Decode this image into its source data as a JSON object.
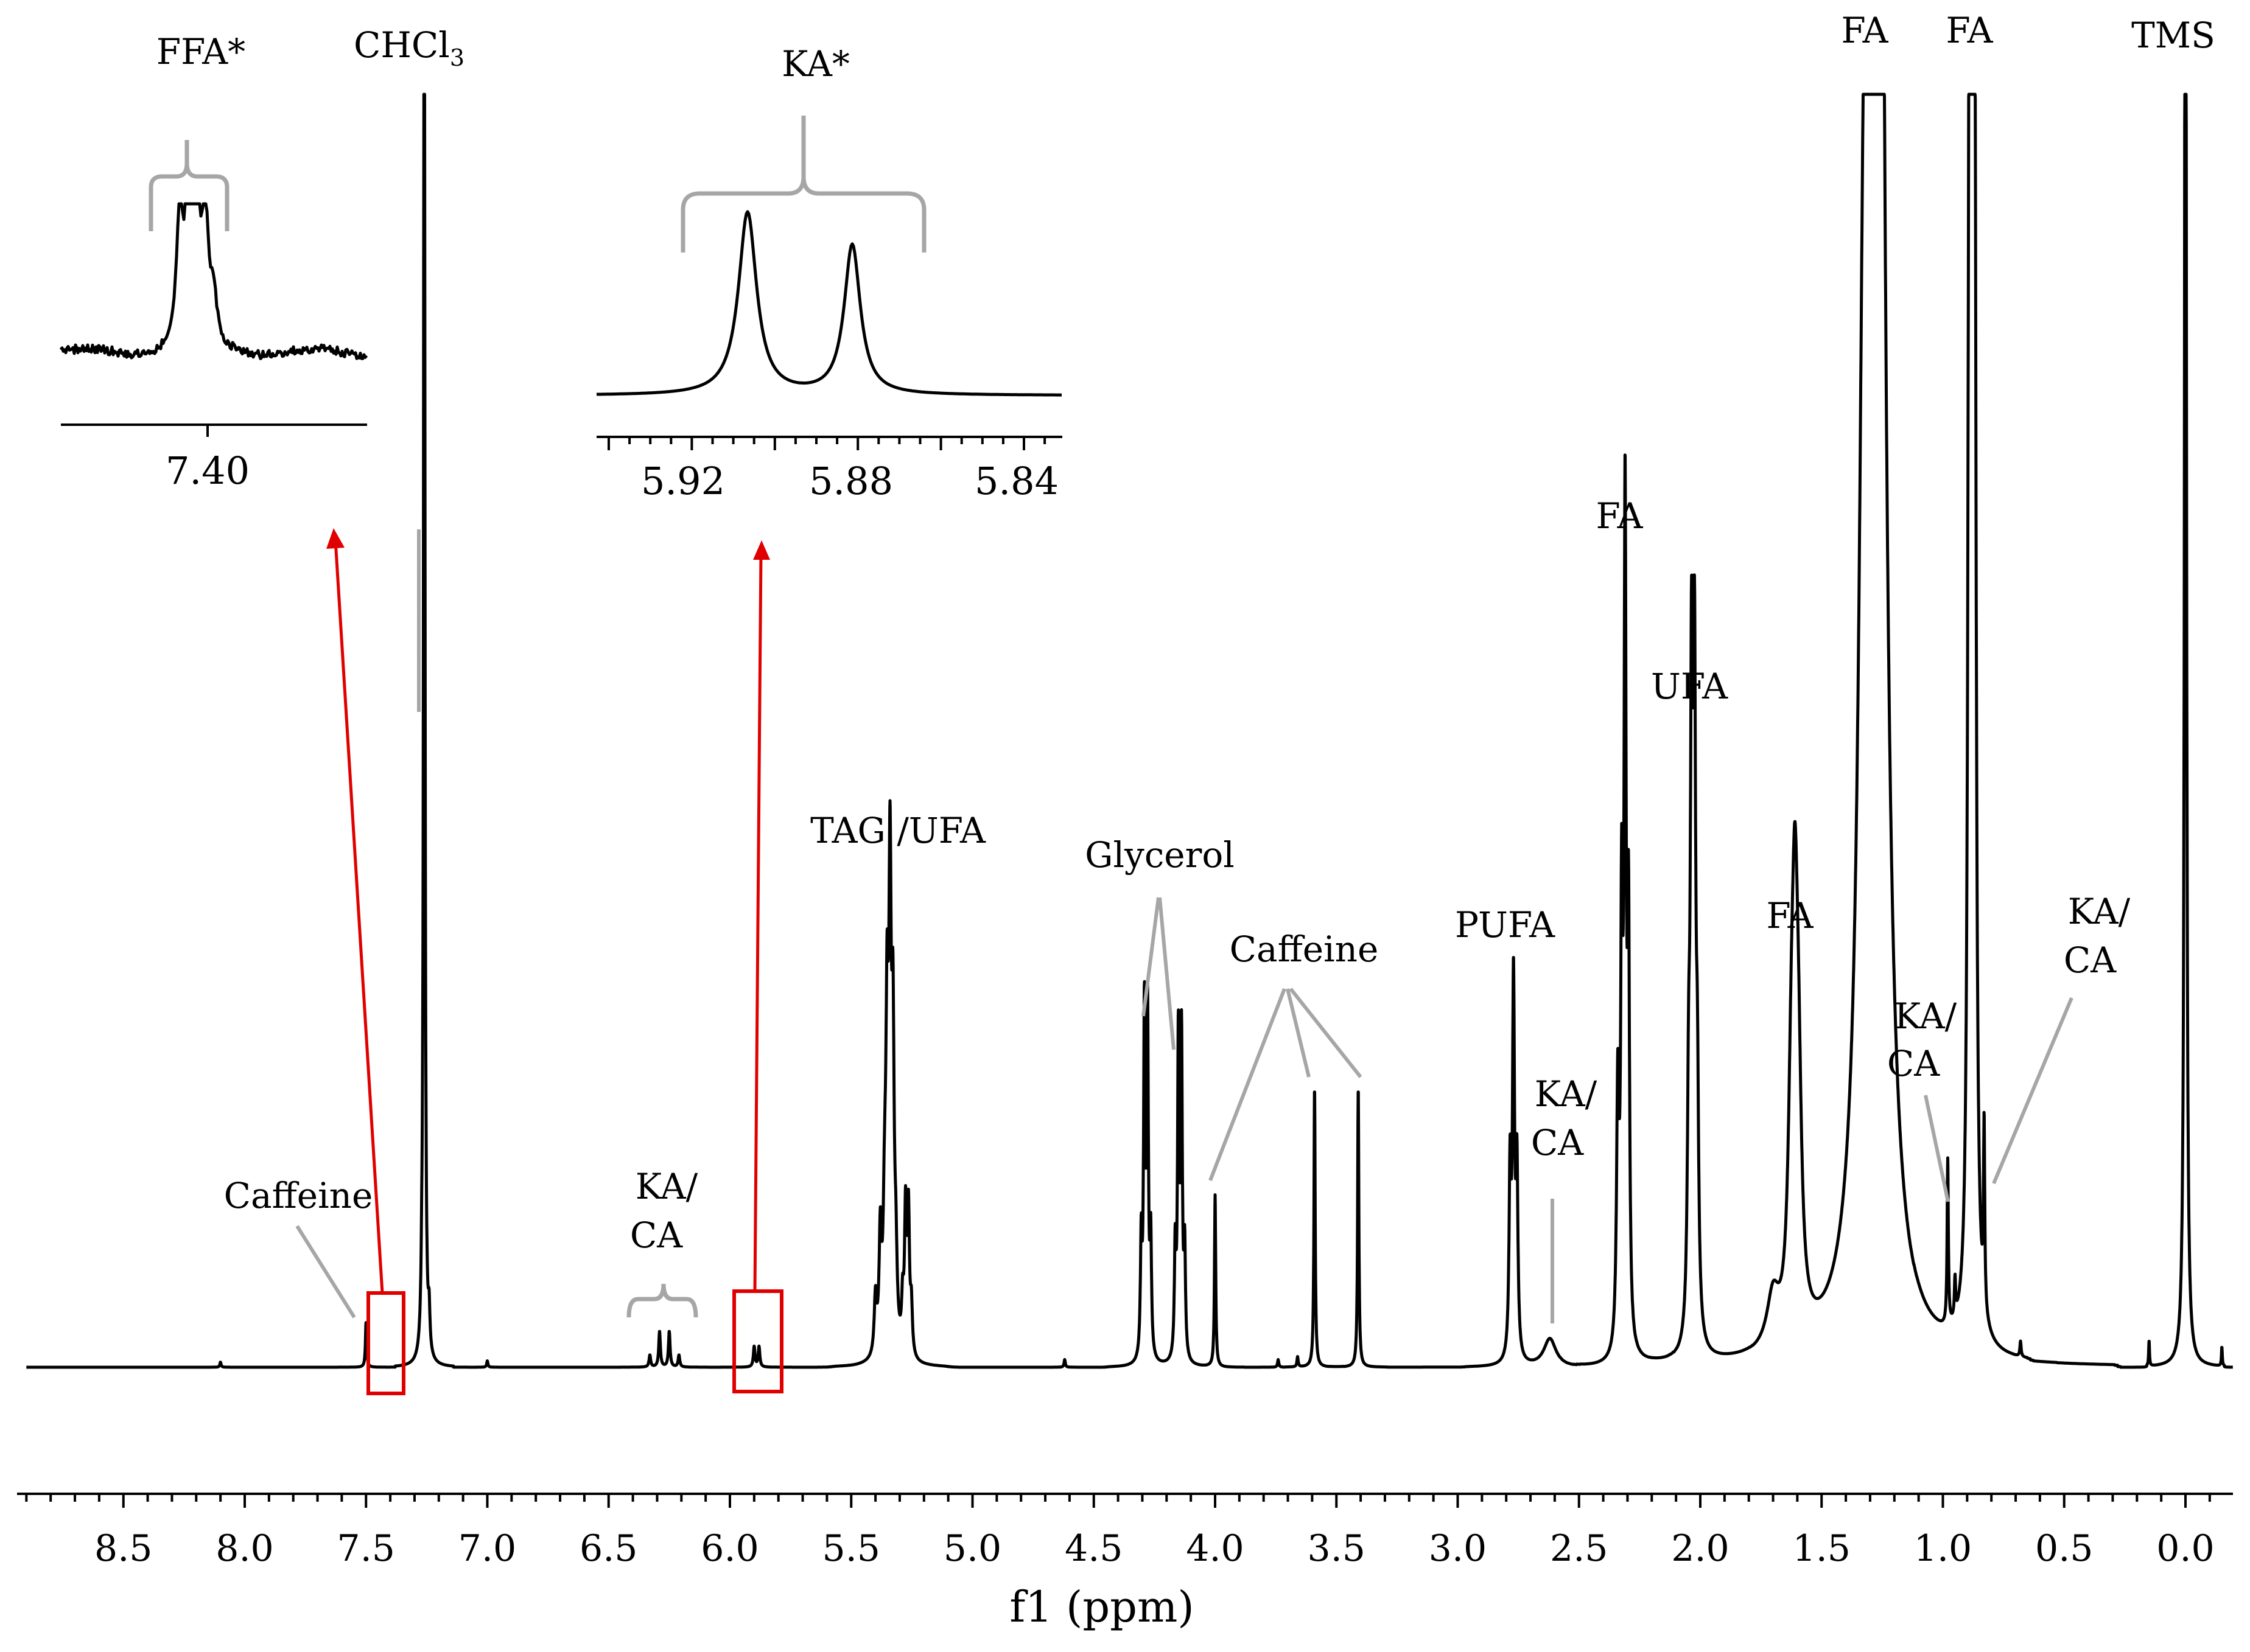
{
  "chart_data": {
    "type": "line",
    "title": "",
    "xlabel": "f1 (ppm)",
    "ylabel": "",
    "xlim": [
      8.9,
      -0.2
    ],
    "x_reversed": true,
    "xticks": [
      "8.5",
      "8.0",
      "7.5",
      "7.0",
      "6.5",
      "6.0",
      "5.5",
      "5.0",
      "4.5",
      "4.0",
      "3.5",
      "3.0",
      "2.5",
      "2.0",
      "1.5",
      "1.0",
      "0.5",
      "0.0"
    ],
    "peaks": [
      {
        "ppm": 7.5,
        "height": 0.035,
        "name": "Caffeine"
      },
      {
        "ppm": 7.26,
        "height": 1.0,
        "name": "CHCl3"
      },
      {
        "ppm": 6.27,
        "height": 0.025,
        "name": "KA/CA"
      },
      {
        "ppm": 5.89,
        "height": 0.015,
        "name": "KA"
      },
      {
        "ppm": 5.34,
        "height": 0.36,
        "name": "TAG /UFA"
      },
      {
        "ppm": 4.29,
        "height": 0.27,
        "name": "Glycerol"
      },
      {
        "ppm": 4.15,
        "height": 0.25,
        "name": "Glycerol"
      },
      {
        "ppm": 4.0,
        "height": 0.135,
        "name": "Caffeine"
      },
      {
        "ppm": 3.59,
        "height": 0.22,
        "name": "Caffeine"
      },
      {
        "ppm": 3.41,
        "height": 0.22,
        "name": "Caffeine"
      },
      {
        "ppm": 2.77,
        "height": 0.3,
        "name": "PUFA"
      },
      {
        "ppm": 2.62,
        "height": 0.025,
        "name": "KA/CA"
      },
      {
        "ppm": 2.31,
        "height": 0.64,
        "name": "FA"
      },
      {
        "ppm": 2.03,
        "height": 0.49,
        "name": "UFA"
      },
      {
        "ppm": 1.61,
        "height": 0.3,
        "name": "FA"
      },
      {
        "ppm": 1.28,
        "height": 1.0,
        "name": "FA"
      },
      {
        "ppm": 0.98,
        "height": 0.13,
        "name": "KA/CA"
      },
      {
        "ppm": 0.88,
        "height": 1.0,
        "name": "FA"
      },
      {
        "ppm": 0.83,
        "height": 0.145,
        "name": "KA/CA"
      },
      {
        "ppm": 0.0,
        "height": 1.0,
        "name": "TMS"
      }
    ],
    "insets": [
      {
        "name": "FFA*",
        "ticks": [
          "7.40"
        ],
        "center_ppm": 7.4
      },
      {
        "name": "KA*",
        "ticks": [
          "5.92",
          "5.88",
          "5.84"
        ],
        "peaks_ppm": [
          5.9,
          5.88
        ]
      }
    ],
    "colors": {
      "trace": "#000000",
      "annotation": "#a6a6a6",
      "zoom_marker": "#e00000"
    }
  },
  "labels": {
    "caffeine_left": "Caffeine",
    "chcl3_main": "CHCl",
    "chcl3_sub": "3",
    "ka_ca_1a": "KA/",
    "ka_ca_1b": "CA",
    "tag_ufa": "TAG /UFA",
    "glycerol": "Glycerol",
    "caffeine_mid": "Caffeine",
    "pufa": "PUFA",
    "ka_ca_2a": "KA/",
    "ka_ca_2b": "CA",
    "fa_23": "FA",
    "ufa": "UFA",
    "fa_16": "FA",
    "fa_13": "FA",
    "fa_09": "FA",
    "ka_ca_3a": "KA/",
    "ka_ca_3b": "CA",
    "ka_ca_4a": "KA/",
    "ka_ca_4b": "CA",
    "tms": "TMS",
    "ffa_star": "FFA*",
    "ka_star": "KA*"
  }
}
